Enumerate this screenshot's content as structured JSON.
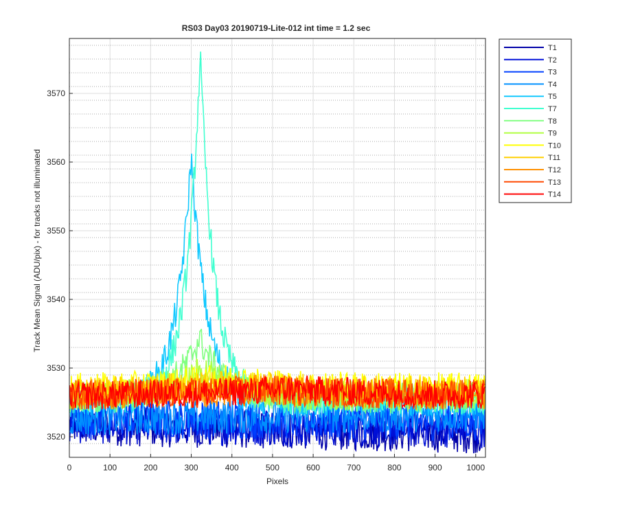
{
  "chart_data": {
    "type": "line",
    "title": "RS03 Day03 20190719-Lite-012 int time = 1.2 sec",
    "xlabel": "Pixels",
    "ylabel": "Track Mean Signal (ADU/pix) - for tracks not illuminated",
    "xlim": [
      0,
      1024
    ],
    "ylim": [
      3517,
      3578
    ],
    "xticks": [
      0,
      100,
      200,
      300,
      400,
      500,
      600,
      700,
      800,
      900,
      1000
    ],
    "yticks": [
      3520,
      3530,
      3540,
      3550,
      3560,
      3570
    ],
    "grid": true,
    "minor_grid": true,
    "legend_position": "outside-right-top",
    "series": [
      {
        "name": "T1",
        "color": "#0000a8",
        "base": 3521.0,
        "tilt": -0.6,
        "noise": 1.8,
        "peak": 0,
        "center": 320,
        "width": 40
      },
      {
        "name": "T2",
        "color": "#0010d8",
        "base": 3521.5,
        "tilt": -0.3,
        "noise": 1.8,
        "peak": 0,
        "center": 320,
        "width": 40
      },
      {
        "name": "T3",
        "color": "#0040ff",
        "base": 3522.5,
        "tilt": -0.2,
        "noise": 1.8,
        "peak": 0,
        "center": 320,
        "width": 40
      },
      {
        "name": "T4",
        "color": "#0090ff",
        "base": 3523.0,
        "tilt": 0.3,
        "noise": 1.6,
        "peak": 0,
        "center": 320,
        "width": 40
      },
      {
        "name": "T5",
        "color": "#10c8ff",
        "base": 3525.0,
        "tilt": 0.0,
        "noise": 1.4,
        "peak": 36,
        "center": 300,
        "width": 38
      },
      {
        "name": "T7",
        "color": "#40ffd0",
        "base": 3525.5,
        "tilt": 0.0,
        "noise": 1.4,
        "peak": 50,
        "center": 322,
        "width": 34
      },
      {
        "name": "T8",
        "color": "#80ff80",
        "base": 3525.5,
        "tilt": 0.2,
        "noise": 1.4,
        "peak": 9,
        "center": 320,
        "width": 60
      },
      {
        "name": "T9",
        "color": "#b0ff40",
        "base": 3526.0,
        "tilt": 0.2,
        "noise": 1.4,
        "peak": 4,
        "center": 330,
        "width": 80
      },
      {
        "name": "T10",
        "color": "#ffff00",
        "base": 3527.0,
        "tilt": 0.1,
        "noise": 1.4,
        "peak": 1.5,
        "center": 380,
        "width": 160
      },
      {
        "name": "T11",
        "color": "#ffd000",
        "base": 3526.5,
        "tilt": 0.0,
        "noise": 1.4,
        "peak": 1.0,
        "center": 400,
        "width": 200
      },
      {
        "name": "T12",
        "color": "#ff9000",
        "base": 3526.0,
        "tilt": 0.0,
        "noise": 1.4,
        "peak": 0.8,
        "center": 450,
        "width": 250
      },
      {
        "name": "T13",
        "color": "#ff4800",
        "base": 3526.0,
        "tilt": 0.0,
        "noise": 1.4,
        "peak": 0.8,
        "center": 500,
        "width": 300
      },
      {
        "name": "T14",
        "color": "#ff0000",
        "base": 3525.8,
        "tilt": 0.0,
        "noise": 1.3,
        "peak": 1.2,
        "center": 550,
        "width": 300
      }
    ]
  }
}
